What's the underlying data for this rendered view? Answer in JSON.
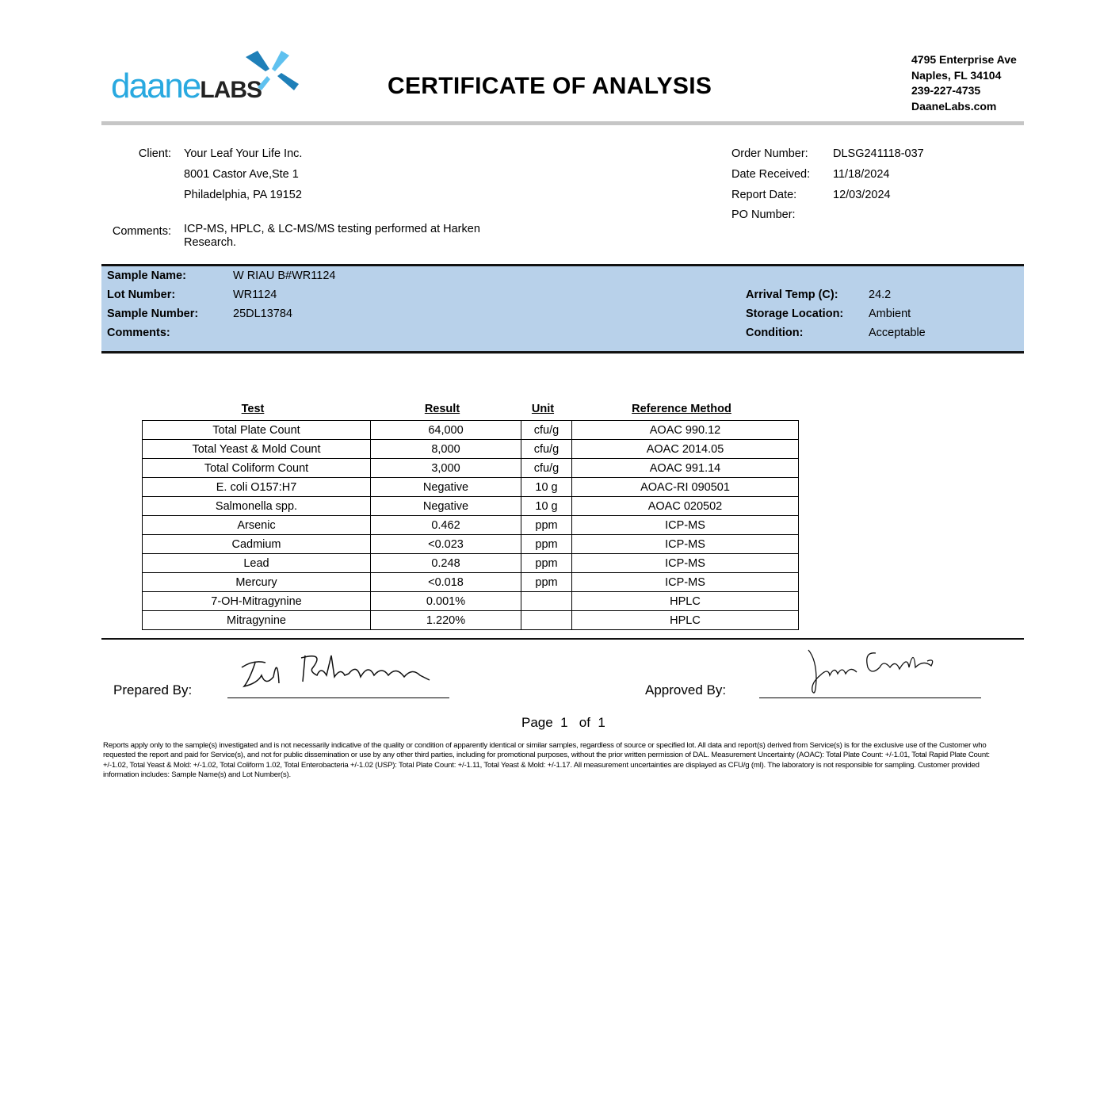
{
  "header": {
    "logo": "daaneLABS",
    "title": "CERTIFICATE OF ANALYSIS",
    "address": [
      "4795 Enterprise Ave",
      "Naples, FL 34104",
      "239-227-4735",
      "DaaneLabs.com"
    ]
  },
  "client": {
    "label": "Client:",
    "name": "Your Leaf Your Life Inc.",
    "address1": "8001 Castor Ave,Ste 1",
    "address2": "Philadelphia, PA 19152",
    "comments_label": "Comments:",
    "comments": "ICP-MS, HPLC, & LC-MS/MS testing performed at Harken Research."
  },
  "order": {
    "order_number_label": "Order Number:",
    "order_number": "DLSG241118-037",
    "date_received_label": "Date Received:",
    "date_received": "11/18/2024",
    "report_date_label": "Report Date:",
    "report_date": "12/03/2024",
    "po_number_label": "PO Number:",
    "po_number": ""
  },
  "sample": {
    "name_label": "Sample Name:",
    "name": "W RIAU B#WR1124",
    "lot_label": "Lot Number:",
    "lot": "WR1124",
    "number_label": "Sample Number:",
    "number": "25DL13784",
    "comments_label": "Comments:",
    "arrival_temp_label": "Arrival Temp (C):",
    "arrival_temp": "24.2",
    "storage_label": "Storage Location:",
    "storage": "Ambient",
    "condition_label": "Condition:",
    "condition": "Acceptable",
    "band_color": "#b8d1ea"
  },
  "results": {
    "headers": [
      "Test",
      "Result",
      "Unit",
      "Reference Method"
    ],
    "rows": [
      [
        "Total Plate Count",
        "64,000",
        "cfu/g",
        "AOAC 990.12"
      ],
      [
        "Total Yeast & Mold Count",
        "8,000",
        "cfu/g",
        "AOAC 2014.05"
      ],
      [
        "Total Coliform Count",
        "3,000",
        "cfu/g",
        "AOAC 991.14"
      ],
      [
        "E. coli O157:H7",
        "Negative",
        "10 g",
        "AOAC-RI 090501"
      ],
      [
        "Salmonella spp.",
        "Negative",
        "10 g",
        "AOAC 020502"
      ],
      [
        "Arsenic",
        "0.462",
        "ppm",
        "ICP-MS"
      ],
      [
        "Cadmium",
        "<0.023",
        "ppm",
        "ICP-MS"
      ],
      [
        "Lead",
        "0.248",
        "ppm",
        "ICP-MS"
      ],
      [
        "Mercury",
        "<0.018",
        "ppm",
        "ICP-MS"
      ],
      [
        "7-OH-Mitragynine",
        "0.001%",
        "",
        "HPLC"
      ],
      [
        "Mitragynine",
        "1.220%",
        "",
        "HPLC"
      ]
    ]
  },
  "signoff": {
    "prepared_label": "Prepared By:",
    "approved_label": "Approved By:",
    "page": "Page  1   of  1"
  },
  "footer": "Reports apply only to the sample(s) investigated and is not necessarily indicative of the quality or condition of apparently identical or similar samples, regardless of source or specified lot. All data and report(s) derived from Service(s) is for the exclusive use of the Customer who requested the report and paid for Service(s), and not for public dissemination or use by any other third parties, including for promotional purposes, without the prior written permission of DAL. Measurement Uncertainty (AOAC): Total Plate Count: +/-1.01, Total Rapid Plate Count: +/-1.02, Total Yeast & Mold: +/-1.02, Total Coliform 1.02, Total Enterobacteria +/-1.02 (USP): Total Plate Count: +/-1.11, Total Yeast & Mold: +/-1.17. All measurement uncertainties are displayed as CFU/g (ml). The laboratory is not responsible for sampling. Customer provided information includes: Sample Name(s) and Lot Number(s)."
}
